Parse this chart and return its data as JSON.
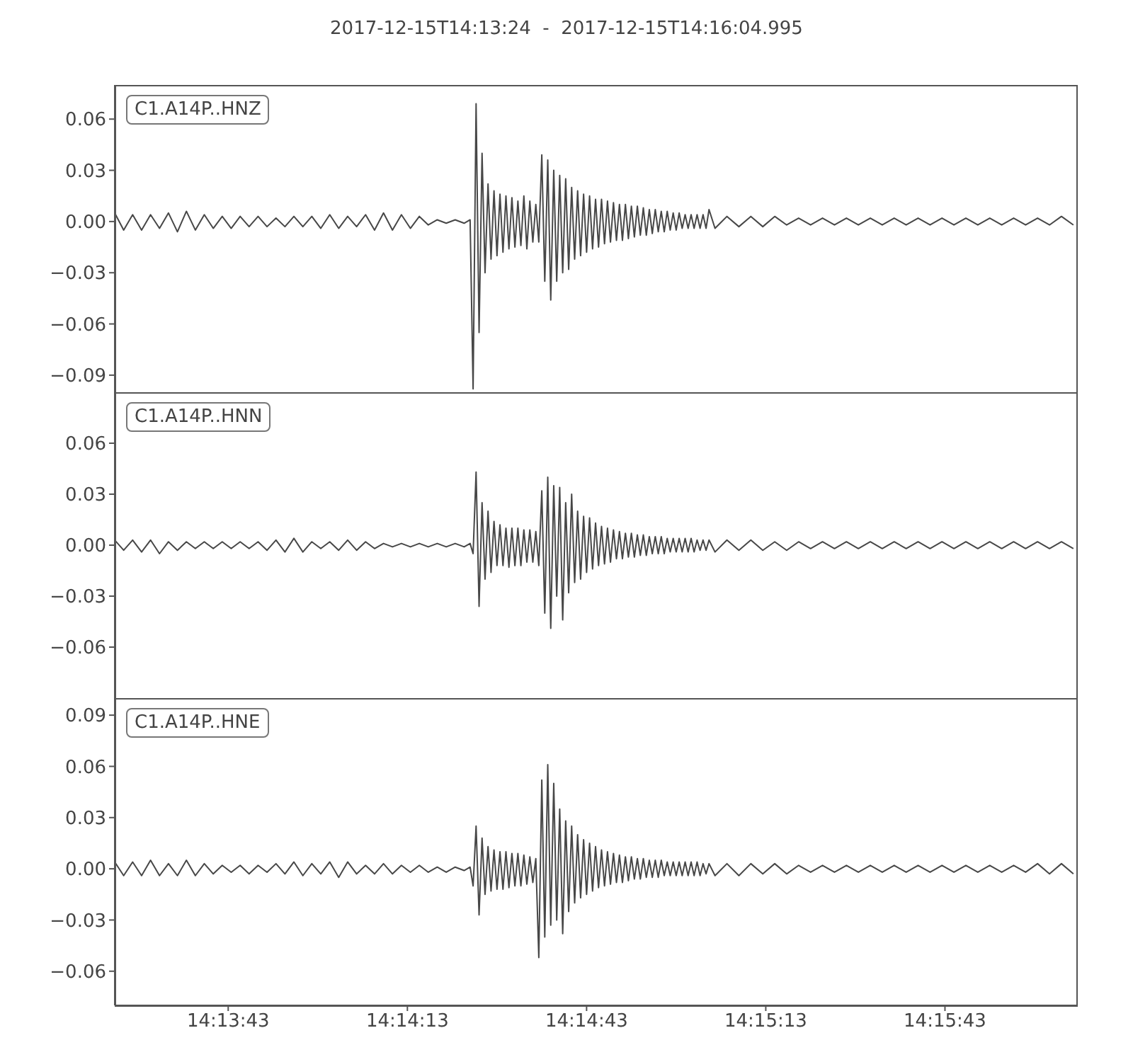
{
  "chart_data": [
    {
      "type": "line",
      "title": "2017-12-15T14:13:24  -  2017-12-15T14:16:04.995",
      "annotations": [
        "C1.A14P..HNZ"
      ],
      "tick_labels": "y",
      "xlim": [
        "2017-12-15T14:13:24",
        "2017-12-15T14:16:04.995"
      ],
      "xticks": [
        {
          "value": "2017-12-15T14:13:43",
          "label": null
        },
        {
          "value": "2017-12-15T14:14:13",
          "label": null
        },
        {
          "value": "2017-12-15T14:14:43",
          "label": null
        },
        {
          "value": "2017-12-15T14:15:13",
          "label": null
        },
        {
          "value": "2017-12-15T14:15:43",
          "label": null
        }
      ],
      "ylim": [
        -0.1,
        0.08
      ],
      "yticks": [
        {
          "value": -0.09,
          "label": "−0.09"
        },
        {
          "value": -0.06,
          "label": "−0.06"
        },
        {
          "value": -0.03,
          "label": "−0.03"
        },
        {
          "value": 0,
          "label": "0.00"
        },
        0.03,
        0.06
      ],
      "x": [
        "2017-12-15T14:13:24",
        "2017-12-15T14:13:25.5",
        "2017-12-15T14:13:27",
        "2017-12-15T14:13:28.5",
        "2017-12-15T14:13:30",
        "2017-12-15T14:13:31.5",
        "2017-12-15T14:13:33",
        "2017-12-15T14:13:34.5",
        "2017-12-15T14:13:36",
        "2017-12-15T14:13:37.5",
        "2017-12-15T14:13:39",
        "2017-12-15T14:13:40.5",
        "2017-12-15T14:13:42",
        "2017-12-15T14:13:43.5",
        "2017-12-15T14:13:45",
        "2017-12-15T14:13:46.5",
        "2017-12-15T14:13:48",
        "2017-12-15T14:13:49.5",
        "2017-12-15T14:13:51",
        "2017-12-15T14:13:52.5",
        "2017-12-15T14:13:54",
        "2017-12-15T14:13:55.5",
        "2017-12-15T14:13:57",
        "2017-12-15T14:13:58.5",
        "2017-12-15T14:14:00",
        "2017-12-15T14:14:01.5",
        "2017-12-15T14:14:03",
        "2017-12-15T14:14:04.5",
        "2017-12-15T14:14:06",
        "2017-12-15T14:14:07.5",
        "2017-12-15T14:14:09",
        "2017-12-15T14:14:10.5",
        "2017-12-15T14:14:12",
        "2017-12-15T14:14:13.5",
        "2017-12-15T14:14:15",
        "2017-12-15T14:14:16.5",
        "2017-12-15T14:14:18",
        "2017-12-15T14:14:19.5",
        "2017-12-15T14:14:21",
        "2017-12-15T14:14:22.5",
        "2017-12-15T14:14:23.5",
        "2017-12-15T14:14:24",
        "2017-12-15T14:14:24.5",
        "2017-12-15T14:14:25",
        "2017-12-15T14:14:25.5",
        "2017-12-15T14:14:26",
        "2017-12-15T14:14:26.5",
        "2017-12-15T14:14:27",
        "2017-12-15T14:14:27.5",
        "2017-12-15T14:14:28",
        "2017-12-15T14:14:28.5",
        "2017-12-15T14:14:29",
        "2017-12-15T14:14:29.5",
        "2017-12-15T14:14:30",
        "2017-12-15T14:14:30.5",
        "2017-12-15T14:14:31",
        "2017-12-15T14:14:31.5",
        "2017-12-15T14:14:32",
        "2017-12-15T14:14:32.5",
        "2017-12-15T14:14:33",
        "2017-12-15T14:14:33.5",
        "2017-12-15T14:14:34",
        "2017-12-15T14:14:34.5",
        "2017-12-15T14:14:35",
        "2017-12-15T14:14:35.5",
        "2017-12-15T14:14:36",
        "2017-12-15T14:14:36.5",
        "2017-12-15T14:14:37",
        "2017-12-15T14:14:37.5",
        "2017-12-15T14:14:38",
        "2017-12-15T14:14:38.5",
        "2017-12-15T14:14:39",
        "2017-12-15T14:14:39.5",
        "2017-12-15T14:14:40",
        "2017-12-15T14:14:40.5",
        "2017-12-15T14:14:41",
        "2017-12-15T14:14:41.5",
        "2017-12-15T14:14:42",
        "2017-12-15T14:14:42.5",
        "2017-12-15T14:14:43",
        "2017-12-15T14:14:43.5",
        "2017-12-15T14:14:44",
        "2017-12-15T14:14:44.5",
        "2017-12-15T14:14:45",
        "2017-12-15T14:14:45.5",
        "2017-12-15T14:14:46",
        "2017-12-15T14:14:46.5",
        "2017-12-15T14:14:47",
        "2017-12-15T14:14:47.5",
        "2017-12-15T14:14:48",
        "2017-12-15T14:14:48.5",
        "2017-12-15T14:14:49",
        "2017-12-15T14:14:49.5",
        "2017-12-15T14:14:50",
        "2017-12-15T14:14:50.5",
        "2017-12-15T14:14:51",
        "2017-12-15T14:14:51.5",
        "2017-12-15T14:14:52",
        "2017-12-15T14:14:52.5",
        "2017-12-15T14:14:53",
        "2017-12-15T14:14:53.5",
        "2017-12-15T14:14:54",
        "2017-12-15T14:14:54.5",
        "2017-12-15T14:14:55",
        "2017-12-15T14:14:55.5",
        "2017-12-15T14:14:56",
        "2017-12-15T14:14:56.5",
        "2017-12-15T14:14:57",
        "2017-12-15T14:14:57.5",
        "2017-12-15T14:14:58",
        "2017-12-15T14:14:58.5",
        "2017-12-15T14:14:59",
        "2017-12-15T14:14:59.5",
        "2017-12-15T14:15:00",
        "2017-12-15T14:15:00.5",
        "2017-12-15T14:15:01",
        "2017-12-15T14:15:01.5",
        "2017-12-15T14:15:02",
        "2017-12-15T14:15:02.5",
        "2017-12-15T14:15:03",
        "2017-12-15T14:15:03.5",
        "2017-12-15T14:15:04.5",
        "2017-12-15T14:15:06.5",
        "2017-12-15T14:15:08.5",
        "2017-12-15T14:15:10.5",
        "2017-12-15T14:15:12.5",
        "2017-12-15T14:15:14.5",
        "2017-12-15T14:15:16.5",
        "2017-12-15T14:15:18.5",
        "2017-12-15T14:15:20.5",
        "2017-12-15T14:15:22.5",
        "2017-12-15T14:15:24.5",
        "2017-12-15T14:15:26.5",
        "2017-12-15T14:15:28.5",
        "2017-12-15T14:15:30.5",
        "2017-12-15T14:15:32.5",
        "2017-12-15T14:15:34.5",
        "2017-12-15T14:15:36.5",
        "2017-12-15T14:15:38.5",
        "2017-12-15T14:15:40.5",
        "2017-12-15T14:15:42.5",
        "2017-12-15T14:15:44.5",
        "2017-12-15T14:15:46.5",
        "2017-12-15T14:15:48.5",
        "2017-12-15T14:15:50.5",
        "2017-12-15T14:15:52.5",
        "2017-12-15T14:15:54.5",
        "2017-12-15T14:15:56.5",
        "2017-12-15T14:15:58.5",
        "2017-12-15T14:16:00.5",
        "2017-12-15T14:16:02.5",
        "2017-12-15T14:16:04.5"
      ],
      "series": [
        {
          "color": "#474747",
          "values": [
            0.005,
            -0.005,
            0.004,
            -0.005,
            0.004,
            -0.004,
            0.005,
            -0.006,
            0.006,
            -0.005,
            0.004,
            -0.004,
            0.003,
            -0.004,
            0.003,
            -0.003,
            0.003,
            -0.003,
            0.002,
            -0.003,
            0.003,
            -0.003,
            0.003,
            -0.004,
            0.004,
            -0.004,
            0.003,
            -0.003,
            0.004,
            -0.005,
            0.005,
            -0.005,
            0.004,
            -0.004,
            0.003,
            -0.002,
            0.001,
            -0.001,
            0.001,
            -0.001,
            0.001,
            -0.098,
            0.069,
            -0.065,
            0.04,
            -0.03,
            0.022,
            -0.022,
            0.018,
            -0.02,
            0.016,
            -0.018,
            0.015,
            -0.016,
            0.014,
            -0.015,
            0.012,
            -0.014,
            0.015,
            -0.016,
            0.012,
            -0.012,
            0.01,
            -0.012,
            0.039,
            -0.035,
            0.036,
            -0.046,
            0.03,
            -0.035,
            0.027,
            -0.03,
            0.025,
            -0.028,
            0.02,
            -0.022,
            0.018,
            -0.02,
            0.016,
            -0.018,
            0.015,
            -0.016,
            0.013,
            -0.015,
            0.013,
            -0.013,
            0.012,
            -0.012,
            0.011,
            -0.011,
            0.01,
            -0.011,
            0.01,
            -0.01,
            0.009,
            -0.009,
            0.009,
            -0.008,
            0.008,
            -0.008,
            0.007,
            -0.007,
            0.007,
            -0.006,
            0.006,
            -0.006,
            0.006,
            -0.005,
            0.005,
            -0.005,
            0.005,
            -0.004,
            0.004,
            -0.004,
            0.004,
            -0.004,
            0.004,
            -0.004,
            0.004,
            -0.004,
            0.007,
            -0.004,
            0.003,
            -0.003,
            0.003,
            -0.003,
            0.003,
            -0.002,
            0.002,
            -0.002,
            0.002,
            -0.002,
            0.002,
            -0.002,
            0.002,
            -0.002,
            0.002,
            -0.002,
            0.002,
            -0.002,
            0.002,
            -0.002,
            0.002,
            -0.002,
            0.002,
            -0.002,
            0.002,
            -0.002,
            0.002,
            -0.002,
            0.003,
            -0.002
          ]
        }
      ]
    },
    {
      "type": "line",
      "annotations": [
        "C1.A14P..HNN"
      ],
      "tick_labels": "y",
      "xlim": [
        "2017-12-15T14:13:24",
        "2017-12-15T14:16:04.995"
      ],
      "xticks": [
        {
          "value": "2017-12-15T14:13:43",
          "label": null
        },
        {
          "value": "2017-12-15T14:14:13",
          "label": null
        },
        {
          "value": "2017-12-15T14:14:43",
          "label": null
        },
        {
          "value": "2017-12-15T14:15:13",
          "label": null
        },
        {
          "value": "2017-12-15T14:15:43",
          "label": null
        }
      ],
      "ylim": [
        -0.09,
        0.09
      ],
      "yticks": [
        {
          "value": -0.06,
          "label": "−0.06"
        },
        {
          "value": -0.03,
          "label": "−0.03"
        },
        {
          "value": 0,
          "label": "0.00"
        },
        0.03,
        0.06
      ],
      "x": [
        "2017-12-15T14:13:24",
        "2017-12-15T14:13:25.5",
        "2017-12-15T14:13:27",
        "2017-12-15T14:13:28.5",
        "2017-12-15T14:13:30",
        "2017-12-15T14:13:31.5",
        "2017-12-15T14:13:33",
        "2017-12-15T14:13:34.5",
        "2017-12-15T14:13:36",
        "2017-12-15T14:13:37.5",
        "2017-12-15T14:13:39",
        "2017-12-15T14:13:40.5",
        "2017-12-15T14:13:42",
        "2017-12-15T14:13:43.5",
        "2017-12-15T14:13:45",
        "2017-12-15T14:13:46.5",
        "2017-12-15T14:13:48",
        "2017-12-15T14:13:49.5",
        "2017-12-15T14:13:51",
        "2017-12-15T14:13:52.5",
        "2017-12-15T14:13:54",
        "2017-12-15T14:13:55.5",
        "2017-12-15T14:13:57",
        "2017-12-15T14:13:58.5",
        "2017-12-15T14:14:00",
        "2017-12-15T14:14:01.5",
        "2017-12-15T14:14:03",
        "2017-12-15T14:14:04.5",
        "2017-12-15T14:14:06",
        "2017-12-15T14:14:07.5",
        "2017-12-15T14:14:09",
        "2017-12-15T14:14:10.5",
        "2017-12-15T14:14:12",
        "2017-12-15T14:14:13.5",
        "2017-12-15T14:14:15",
        "2017-12-15T14:14:16.5",
        "2017-12-15T14:14:18",
        "2017-12-15T14:14:19.5",
        "2017-12-15T14:14:21",
        "2017-12-15T14:14:22.5",
        "2017-12-15T14:14:23.5",
        "2017-12-15T14:14:24",
        "2017-12-15T14:14:24.5",
        "2017-12-15T14:14:25",
        "2017-12-15T14:14:25.5",
        "2017-12-15T14:14:26",
        "2017-12-15T14:14:26.5",
        "2017-12-15T14:14:27",
        "2017-12-15T14:14:27.5",
        "2017-12-15T14:14:28",
        "2017-12-15T14:14:28.5",
        "2017-12-15T14:14:29",
        "2017-12-15T14:14:29.5",
        "2017-12-15T14:14:30",
        "2017-12-15T14:14:30.5",
        "2017-12-15T14:14:31",
        "2017-12-15T14:14:31.5",
        "2017-12-15T14:14:32",
        "2017-12-15T14:14:32.5",
        "2017-12-15T14:14:33",
        "2017-12-15T14:14:33.5",
        "2017-12-15T14:14:34",
        "2017-12-15T14:14:34.5",
        "2017-12-15T14:14:35",
        "2017-12-15T14:14:35.5",
        "2017-12-15T14:14:36",
        "2017-12-15T14:14:36.5",
        "2017-12-15T14:14:37",
        "2017-12-15T14:14:37.5",
        "2017-12-15T14:14:38",
        "2017-12-15T14:14:38.5",
        "2017-12-15T14:14:39",
        "2017-12-15T14:14:39.5",
        "2017-12-15T14:14:40",
        "2017-12-15T14:14:40.5",
        "2017-12-15T14:14:41",
        "2017-12-15T14:14:41.5",
        "2017-12-15T14:14:42",
        "2017-12-15T14:14:42.5",
        "2017-12-15T14:14:43",
        "2017-12-15T14:14:43.5",
        "2017-12-15T14:14:44",
        "2017-12-15T14:14:44.5",
        "2017-12-15T14:14:45",
        "2017-12-15T14:14:45.5",
        "2017-12-15T14:14:46",
        "2017-12-15T14:14:46.5",
        "2017-12-15T14:14:47",
        "2017-12-15T14:14:47.5",
        "2017-12-15T14:14:48",
        "2017-12-15T14:14:48.5",
        "2017-12-15T14:14:49",
        "2017-12-15T14:14:49.5",
        "2017-12-15T14:14:50",
        "2017-12-15T14:14:50.5",
        "2017-12-15T14:14:51",
        "2017-12-15T14:14:51.5",
        "2017-12-15T14:14:52",
        "2017-12-15T14:14:52.5",
        "2017-12-15T14:14:53",
        "2017-12-15T14:14:53.5",
        "2017-12-15T14:14:54",
        "2017-12-15T14:14:54.5",
        "2017-12-15T14:14:55",
        "2017-12-15T14:14:55.5",
        "2017-12-15T14:14:56",
        "2017-12-15T14:14:56.5",
        "2017-12-15T14:14:57",
        "2017-12-15T14:14:57.5",
        "2017-12-15T14:14:58",
        "2017-12-15T14:14:58.5",
        "2017-12-15T14:14:59",
        "2017-12-15T14:14:59.5",
        "2017-12-15T14:15:00",
        "2017-12-15T14:15:00.5",
        "2017-12-15T14:15:01",
        "2017-12-15T14:15:01.5",
        "2017-12-15T14:15:02",
        "2017-12-15T14:15:02.5",
        "2017-12-15T14:15:03",
        "2017-12-15T14:15:03.5",
        "2017-12-15T14:15:04.5",
        "2017-12-15T14:15:06.5",
        "2017-12-15T14:15:08.5",
        "2017-12-15T14:15:10.5",
        "2017-12-15T14:15:12.5",
        "2017-12-15T14:15:14.5",
        "2017-12-15T14:15:16.5",
        "2017-12-15T14:15:18.5",
        "2017-12-15T14:15:20.5",
        "2017-12-15T14:15:22.5",
        "2017-12-15T14:15:24.5",
        "2017-12-15T14:15:26.5",
        "2017-12-15T14:15:28.5",
        "2017-12-15T14:15:30.5",
        "2017-12-15T14:15:32.5",
        "2017-12-15T14:15:34.5",
        "2017-12-15T14:15:36.5",
        "2017-12-15T14:15:38.5",
        "2017-12-15T14:15:40.5",
        "2017-12-15T14:15:42.5",
        "2017-12-15T14:15:44.5",
        "2017-12-15T14:15:46.5",
        "2017-12-15T14:15:48.5",
        "2017-12-15T14:15:50.5",
        "2017-12-15T14:15:52.5",
        "2017-12-15T14:15:54.5",
        "2017-12-15T14:15:56.5",
        "2017-12-15T14:15:58.5",
        "2017-12-15T14:16:00.5",
        "2017-12-15T14:16:02.5",
        "2017-12-15T14:16:04.5"
      ],
      "series": [
        {
          "color": "#474747",
          "values": [
            0.003,
            -0.003,
            0.003,
            -0.004,
            0.003,
            -0.005,
            0.002,
            -0.003,
            0.002,
            -0.002,
            0.002,
            -0.002,
            0.002,
            -0.002,
            0.002,
            -0.002,
            0.002,
            -0.003,
            0.003,
            -0.004,
            0.004,
            -0.004,
            0.002,
            -0.002,
            0.002,
            -0.003,
            0.003,
            -0.003,
            0.002,
            -0.002,
            0.001,
            -0.001,
            0.001,
            -0.001,
            0.001,
            -0.001,
            0.001,
            -0.001,
            0.001,
            -0.001,
            0.001,
            -0.005,
            0.043,
            -0.036,
            0.025,
            -0.02,
            0.02,
            -0.016,
            0.014,
            -0.012,
            0.012,
            -0.012,
            0.01,
            -0.013,
            0.01,
            -0.012,
            0.01,
            -0.012,
            0.009,
            -0.01,
            0.009,
            -0.01,
            0.008,
            -0.012,
            0.032,
            -0.04,
            0.04,
            -0.049,
            0.035,
            -0.03,
            0.034,
            -0.044,
            0.025,
            -0.028,
            0.03,
            -0.022,
            0.02,
            -0.02,
            0.017,
            -0.016,
            0.016,
            -0.014,
            0.013,
            -0.012,
            0.011,
            -0.011,
            0.01,
            -0.01,
            0.009,
            -0.008,
            0.008,
            -0.008,
            0.007,
            -0.007,
            0.007,
            -0.007,
            0.006,
            -0.006,
            0.006,
            -0.006,
            0.005,
            -0.005,
            0.005,
            -0.005,
            0.005,
            -0.005,
            0.004,
            -0.004,
            0.004,
            -0.004,
            0.004,
            -0.004,
            0.004,
            -0.004,
            0.004,
            -0.004,
            0.003,
            -0.003,
            0.003,
            -0.003,
            0.003,
            -0.004,
            0.003,
            -0.003,
            0.003,
            -0.003,
            0.002,
            -0.003,
            0.002,
            -0.002,
            0.002,
            -0.002,
            0.002,
            -0.002,
            0.002,
            -0.002,
            0.002,
            -0.002,
            0.002,
            -0.002,
            0.002,
            -0.002,
            0.002,
            -0.002,
            0.002,
            -0.002,
            0.002,
            -0.002,
            0.002,
            -0.002,
            0.002,
            -0.002
          ]
        }
      ]
    },
    {
      "type": "line",
      "annotations": [
        "C1.A14P..HNE"
      ],
      "xlim": [
        "2017-12-15T14:13:24",
        "2017-12-15T14:16:04.995"
      ],
      "xticks": [
        {
          "value": "2017-12-15T14:13:43",
          "label": "14:13:43"
        },
        {
          "value": "2017-12-15T14:14:13",
          "label": "14:14:13"
        },
        {
          "value": "2017-12-15T14:14:43",
          "label": "14:14:43"
        },
        {
          "value": "2017-12-15T14:15:13",
          "label": "14:15:13"
        },
        {
          "value": "2017-12-15T14:15:43",
          "label": "14:15:43"
        }
      ],
      "ylim": [
        -0.08,
        0.1
      ],
      "yticks": [
        {
          "value": -0.06,
          "label": "−0.06"
        },
        {
          "value": -0.03,
          "label": "−0.03"
        },
        {
          "value": 0,
          "label": "0.00"
        },
        0.03,
        0.06,
        0.09
      ],
      "x": [
        "2017-12-15T14:13:24",
        "2017-12-15T14:13:25.5",
        "2017-12-15T14:13:27",
        "2017-12-15T14:13:28.5",
        "2017-12-15T14:13:30",
        "2017-12-15T14:13:31.5",
        "2017-12-15T14:13:33",
        "2017-12-15T14:13:34.5",
        "2017-12-15T14:13:36",
        "2017-12-15T14:13:37.5",
        "2017-12-15T14:13:39",
        "2017-12-15T14:13:40.5",
        "2017-12-15T14:13:42",
        "2017-12-15T14:13:43.5",
        "2017-12-15T14:13:45",
        "2017-12-15T14:13:46.5",
        "2017-12-15T14:13:48",
        "2017-12-15T14:13:49.5",
        "2017-12-15T14:13:51",
        "2017-12-15T14:13:52.5",
        "2017-12-15T14:13:54",
        "2017-12-15T14:13:55.5",
        "2017-12-15T14:13:57",
        "2017-12-15T14:13:58.5",
        "2017-12-15T14:14:00",
        "2017-12-15T14:14:01.5",
        "2017-12-15T14:14:03",
        "2017-12-15T14:14:04.5",
        "2017-12-15T14:14:06",
        "2017-12-15T14:14:07.5",
        "2017-12-15T14:14:09",
        "2017-12-15T14:14:10.5",
        "2017-12-15T14:14:12",
        "2017-12-15T14:14:13.5",
        "2017-12-15T14:14:15",
        "2017-12-15T14:14:16.5",
        "2017-12-15T14:14:18",
        "2017-12-15T14:14:19.5",
        "2017-12-15T14:14:21",
        "2017-12-15T14:14:22.5",
        "2017-12-15T14:14:23.5",
        "2017-12-15T14:14:24",
        "2017-12-15T14:14:24.5",
        "2017-12-15T14:14:25",
        "2017-12-15T14:14:25.5",
        "2017-12-15T14:14:26",
        "2017-12-15T14:14:26.5",
        "2017-12-15T14:14:27",
        "2017-12-15T14:14:27.5",
        "2017-12-15T14:14:28",
        "2017-12-15T14:14:28.5",
        "2017-12-15T14:14:29",
        "2017-12-15T14:14:29.5",
        "2017-12-15T14:14:30",
        "2017-12-15T14:14:30.5",
        "2017-12-15T14:14:31",
        "2017-12-15T14:14:31.5",
        "2017-12-15T14:14:32",
        "2017-12-15T14:14:32.5",
        "2017-12-15T14:14:33",
        "2017-12-15T14:14:33.5",
        "2017-12-15T14:14:34",
        "2017-12-15T14:14:34.5",
        "2017-12-15T14:14:35",
        "2017-12-15T14:14:35.5",
        "2017-12-15T14:14:36",
        "2017-12-15T14:14:36.5",
        "2017-12-15T14:14:37",
        "2017-12-15T14:14:37.5",
        "2017-12-15T14:14:38",
        "2017-12-15T14:14:38.5",
        "2017-12-15T14:14:39",
        "2017-12-15T14:14:39.5",
        "2017-12-15T14:14:40",
        "2017-12-15T14:14:40.5",
        "2017-12-15T14:14:41",
        "2017-12-15T14:14:41.5",
        "2017-12-15T14:14:42",
        "2017-12-15T14:14:42.5",
        "2017-12-15T14:14:43",
        "2017-12-15T14:14:43.5",
        "2017-12-15T14:14:44",
        "2017-12-15T14:14:44.5",
        "2017-12-15T14:14:45",
        "2017-12-15T14:14:45.5",
        "2017-12-15T14:14:46",
        "2017-12-15T14:14:46.5",
        "2017-12-15T14:14:47",
        "2017-12-15T14:14:47.5",
        "2017-12-15T14:14:48",
        "2017-12-15T14:14:48.5",
        "2017-12-15T14:14:49",
        "2017-12-15T14:14:49.5",
        "2017-12-15T14:14:50",
        "2017-12-15T14:14:50.5",
        "2017-12-15T14:14:51",
        "2017-12-15T14:14:51.5",
        "2017-12-15T14:14:52",
        "2017-12-15T14:14:52.5",
        "2017-12-15T14:14:53",
        "2017-12-15T14:14:53.5",
        "2017-12-15T14:14:54",
        "2017-12-15T14:14:54.5",
        "2017-12-15T14:14:55",
        "2017-12-15T14:14:55.5",
        "2017-12-15T14:14:56",
        "2017-12-15T14:14:56.5",
        "2017-12-15T14:14:57",
        "2017-12-15T14:14:57.5",
        "2017-12-15T14:14:58",
        "2017-12-15T14:14:58.5",
        "2017-12-15T14:14:59",
        "2017-12-15T14:14:59.5",
        "2017-12-15T14:15:00",
        "2017-12-15T14:15:00.5",
        "2017-12-15T14:15:01",
        "2017-12-15T14:15:01.5",
        "2017-12-15T14:15:02",
        "2017-12-15T14:15:02.5",
        "2017-12-15T14:15:03",
        "2017-12-15T14:15:03.5",
        "2017-12-15T14:15:04.5",
        "2017-12-15T14:15:06.5",
        "2017-12-15T14:15:08.5",
        "2017-12-15T14:15:10.5",
        "2017-12-15T14:15:12.5",
        "2017-12-15T14:15:14.5",
        "2017-12-15T14:15:16.5",
        "2017-12-15T14:15:18.5",
        "2017-12-15T14:15:20.5",
        "2017-12-15T14:15:22.5",
        "2017-12-15T14:15:24.5",
        "2017-12-15T14:15:26.5",
        "2017-12-15T14:15:28.5",
        "2017-12-15T14:15:30.5",
        "2017-12-15T14:15:32.5",
        "2017-12-15T14:15:34.5",
        "2017-12-15T14:15:36.5",
        "2017-12-15T14:15:38.5",
        "2017-12-15T14:15:40.5",
        "2017-12-15T14:15:42.5",
        "2017-12-15T14:15:44.5",
        "2017-12-15T14:15:46.5",
        "2017-12-15T14:15:48.5",
        "2017-12-15T14:15:50.5",
        "2017-12-15T14:15:52.5",
        "2017-12-15T14:15:54.5",
        "2017-12-15T14:15:56.5",
        "2017-12-15T14:15:58.5",
        "2017-12-15T14:16:00.5",
        "2017-12-15T14:16:02.5",
        "2017-12-15T14:16:04.5"
      ],
      "series": [
        {
          "color": "#474747",
          "values": [
            0.004,
            -0.004,
            0.004,
            -0.004,
            0.005,
            -0.004,
            0.003,
            -0.004,
            0.005,
            -0.004,
            0.003,
            -0.003,
            0.002,
            -0.002,
            0.002,
            -0.003,
            0.002,
            -0.002,
            0.003,
            -0.003,
            0.004,
            -0.004,
            0.003,
            -0.003,
            0.004,
            -0.005,
            0.004,
            -0.003,
            0.002,
            -0.003,
            0.003,
            -0.003,
            0.002,
            -0.002,
            0.002,
            -0.002,
            0.001,
            -0.002,
            0.001,
            -0.001,
            0.001,
            -0.01,
            0.025,
            -0.027,
            0.018,
            -0.015,
            0.013,
            -0.013,
            0.011,
            -0.012,
            0.01,
            -0.012,
            0.01,
            -0.011,
            0.009,
            -0.01,
            0.009,
            -0.01,
            0.008,
            -0.009,
            0.007,
            -0.008,
            0.006,
            -0.052,
            0.052,
            -0.04,
            0.061,
            -0.033,
            0.05,
            -0.03,
            0.035,
            -0.038,
            0.028,
            -0.025,
            0.025,
            -0.02,
            0.02,
            -0.017,
            0.017,
            -0.015,
            0.015,
            -0.013,
            0.013,
            -0.011,
            0.011,
            -0.01,
            0.01,
            -0.009,
            0.009,
            -0.008,
            0.008,
            -0.008,
            0.007,
            -0.007,
            0.007,
            -0.006,
            0.006,
            -0.006,
            0.006,
            -0.005,
            0.005,
            -0.005,
            0.005,
            -0.005,
            0.005,
            -0.004,
            0.004,
            -0.004,
            0.004,
            -0.004,
            0.004,
            -0.004,
            0.004,
            -0.004,
            0.004,
            -0.004,
            0.004,
            -0.004,
            0.003,
            -0.003,
            0.003,
            -0.004,
            0.003,
            -0.004,
            0.003,
            -0.003,
            0.003,
            -0.003,
            0.002,
            -0.002,
            0.002,
            -0.002,
            0.002,
            -0.002,
            0.002,
            -0.002,
            0.002,
            -0.002,
            0.002,
            -0.002,
            0.002,
            -0.002,
            0.002,
            -0.002,
            0.002,
            -0.002,
            0.002,
            -0.002,
            0.003,
            -0.003,
            0.003,
            -0.003
          ]
        }
      ]
    }
  ]
}
